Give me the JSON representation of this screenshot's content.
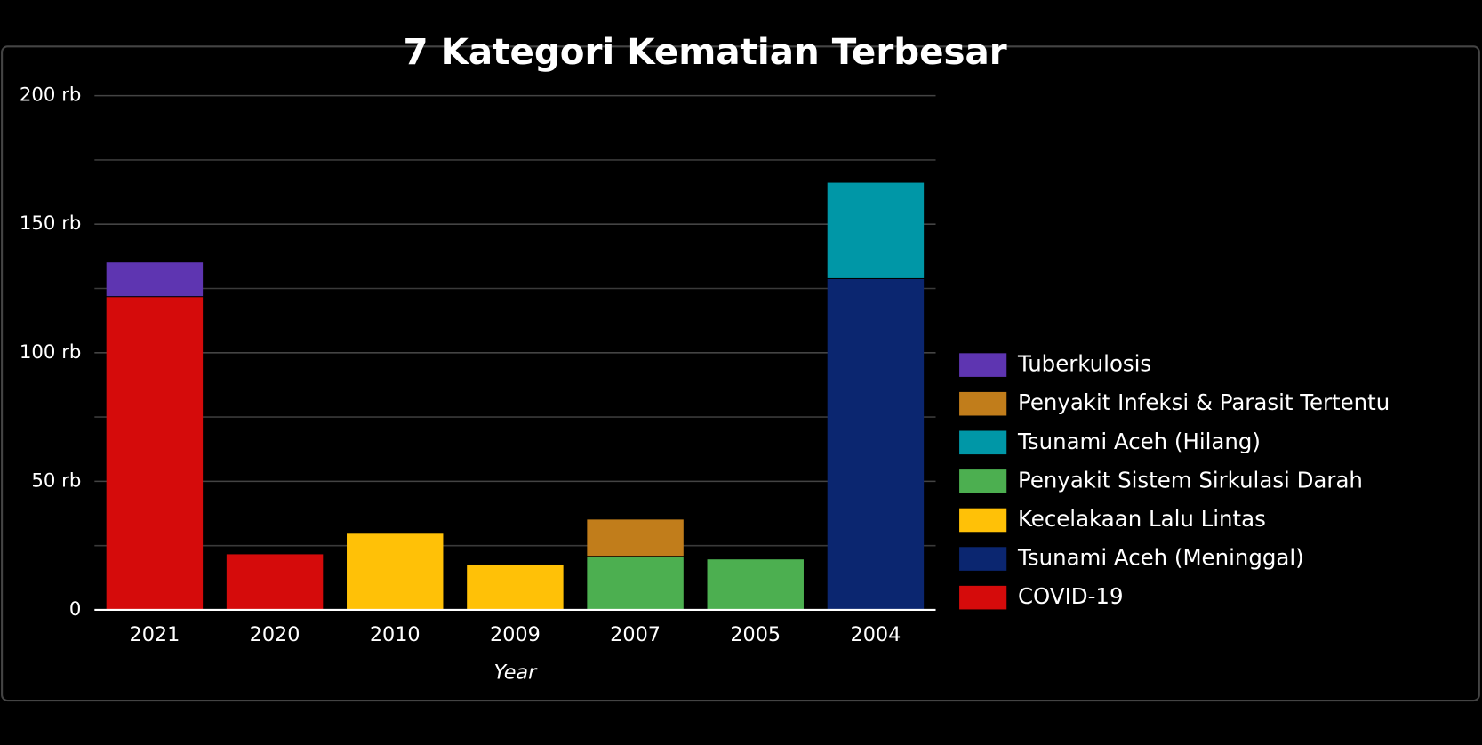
{
  "chart_data": {
    "type": "stacked_bar",
    "title": "7 Kategori Kematian Terbesar",
    "x_label": "Year",
    "categories": [
      "2021",
      "2020",
      "2010",
      "2009",
      "2007",
      "2005",
      "2004"
    ],
    "series": [
      {
        "name": "COVID-19",
        "color": "#d50b0b",
        "values": [
          122,
          22,
          null,
          null,
          null,
          null,
          null
        ]
      },
      {
        "name": "Tsunami Aceh (Meninggal)",
        "color": "#0b2670",
        "values": [
          null,
          null,
          null,
          null,
          null,
          null,
          129
        ]
      },
      {
        "name": "Kecelakaan Lalu Lintas",
        "color": "#ffc107",
        "values": [
          null,
          null,
          30,
          18,
          null,
          null,
          null
        ]
      },
      {
        "name": "Penyakit Sistem Sirkulasi Darah",
        "color": "#4caf50",
        "values": [
          null,
          null,
          null,
          null,
          21,
          20,
          null
        ]
      },
      {
        "name": "Tsunami Aceh (Hilang)",
        "color": "#0097a7",
        "values": [
          null,
          null,
          null,
          null,
          null,
          null,
          37.5
        ]
      },
      {
        "name": "Penyakit Infeksi & Parasit Tertentu",
        "color": "#c17d1b",
        "values": [
          null,
          null,
          null,
          null,
          14.5,
          null,
          null
        ]
      },
      {
        "name": "Tuberkulosis",
        "color": "#5e35b1",
        "values": [
          13.5,
          null,
          null,
          null,
          null,
          null,
          null
        ]
      }
    ],
    "ylim": [
      0,
      200
    ],
    "yticks": [
      0,
      {
        "value": 50,
        "label": "50 rb"
      },
      {
        "value": 100,
        "label": "100 rb"
      },
      {
        "value": 150,
        "label": "150 rb"
      },
      {
        "value": 200,
        "label": "200 rb"
      }
    ],
    "minor_yticks": [
      25,
      75,
      125,
      175
    ],
    "grid": true
  }
}
